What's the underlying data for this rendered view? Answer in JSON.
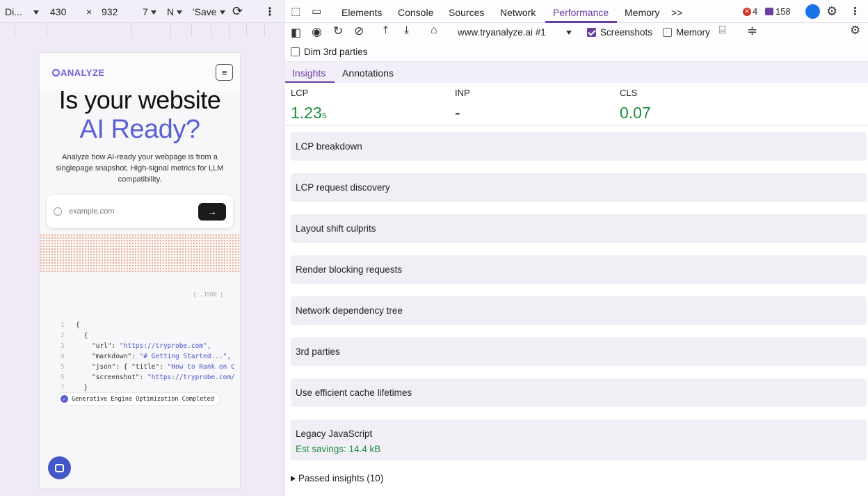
{
  "device_toolbar": {
    "device": "Di...",
    "width": "430",
    "times": "×",
    "height": "932",
    "zoom": "7",
    "throttle": "N",
    "save": "'Save"
  },
  "phone": {
    "brand": "ANALYZE",
    "menu_icon": "≡",
    "hero_line1": "Is your website",
    "hero_line2": "AI Ready?",
    "subtitle": "Analyze how AI-ready your webpage is from a singlepage snapshot. High-signal metrics for LLM compatibility.",
    "search_placeholder": "example.com",
    "go_arrow": "→",
    "json_label": "[ .JSON ]",
    "code_lines": [
      {
        "n": "1",
        "text": "{"
      },
      {
        "n": "2",
        "text": "  {"
      },
      {
        "n": "3",
        "key": "    \"url\": ",
        "val": "\"https://tryprobe.com\","
      },
      {
        "n": "4",
        "key": "    \"markdown\": ",
        "val": "\"# Getting Started...\","
      },
      {
        "n": "5",
        "key": "    \"json\": { \"title\": ",
        "val": "\"How to Rank on C"
      },
      {
        "n": "6",
        "key": "    \"screenshot\": ",
        "val": "\"https://tryprobe.com/"
      },
      {
        "n": "7",
        "text": "  }"
      }
    ],
    "badge": "Generative Engine Optimization Completed"
  },
  "devtools": {
    "tabs": [
      "Elements",
      "Console",
      "Sources",
      "Network",
      "Performance",
      "Memory"
    ],
    "more": ">>",
    "errors": "4",
    "messages": "158",
    "recording": "www.tryanalyze.ai #1",
    "screenshots_label": "Screenshots",
    "memory_label": "Memory",
    "dim_label": "Dim 3rd parties",
    "subtabs": [
      "Insights",
      "Annotations"
    ],
    "metrics": {
      "lcp_label": "LCP",
      "lcp_value": "1.23",
      "lcp_unit": "s",
      "inp_label": "INP",
      "inp_value": "-",
      "cls_label": "CLS",
      "cls_value": "0.07"
    },
    "insights": [
      {
        "title": "LCP breakdown"
      },
      {
        "title": "LCP request discovery"
      },
      {
        "title": "Layout shift culprits"
      },
      {
        "title": "Render blocking requests"
      },
      {
        "title": "Network dependency tree"
      },
      {
        "title": "3rd parties"
      },
      {
        "title": "Use efficient cache lifetimes"
      },
      {
        "title": "Legacy JavaScript",
        "savings": "Est savings: 14.4 kB"
      }
    ],
    "passed": "Passed insights (10)"
  }
}
